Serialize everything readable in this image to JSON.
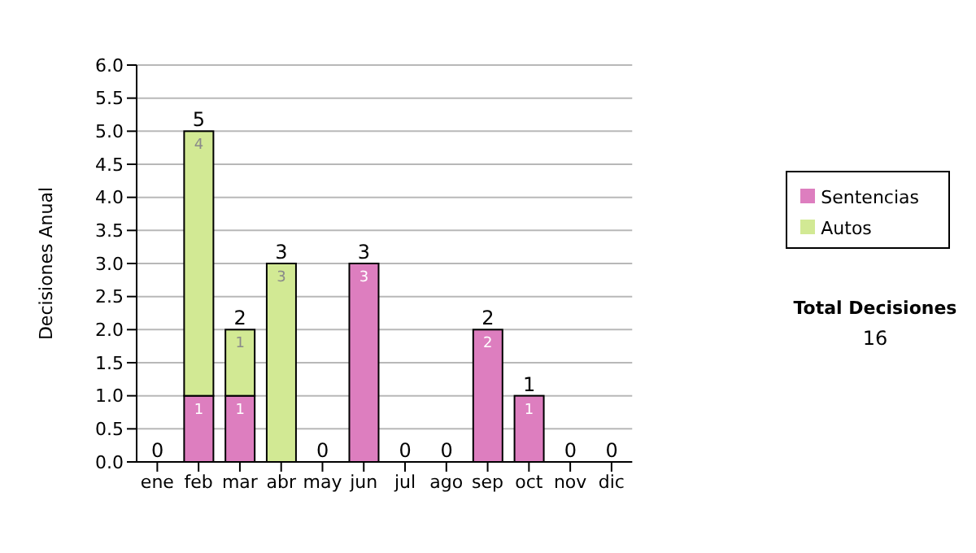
{
  "chart_data": {
    "type": "bar",
    "stacked": true,
    "ylabel": "Decisiones Anual",
    "categories": [
      "ene",
      "feb",
      "mar",
      "abr",
      "may",
      "jun",
      "jul",
      "ago",
      "sep",
      "oct",
      "nov",
      "dic"
    ],
    "series": [
      {
        "name": "Sentencias",
        "color": "#dd7ebf",
        "values": [
          0,
          1,
          1,
          0,
          0,
          3,
          0,
          0,
          2,
          1,
          0,
          0
        ],
        "value_labels": [
          null,
          "1",
          "1",
          null,
          null,
          "3",
          null,
          null,
          "2",
          "1",
          null,
          null
        ]
      },
      {
        "name": "Autos",
        "color": "#d2e994",
        "values": [
          0,
          4,
          1,
          3,
          0,
          0,
          0,
          0,
          0,
          0,
          0,
          0
        ],
        "value_labels": [
          null,
          "4",
          "1",
          "3",
          null,
          null,
          null,
          null,
          null,
          null,
          null,
          null
        ]
      }
    ],
    "totals": [
      "0",
      "5",
      "2",
      "3",
      "0",
      "3",
      "0",
      "0",
      "2",
      "1",
      "0",
      "0"
    ],
    "ylim": [
      0,
      6
    ],
    "yticks": [
      {
        "value": 0,
        "label": "0.0"
      },
      {
        "value": 0.5,
        "label": "0.5"
      },
      {
        "value": 1,
        "label": "1.0"
      },
      {
        "value": 1.5,
        "label": "1.5"
      },
      {
        "value": 2,
        "label": "2.0"
      },
      {
        "value": 2.5,
        "label": "2.5"
      },
      {
        "value": 3,
        "label": "3.0"
      },
      {
        "value": 3.5,
        "label": "3.5"
      },
      {
        "value": 4,
        "label": "4.0"
      },
      {
        "value": 4.5,
        "label": "4.5"
      },
      {
        "value": 5,
        "label": "5.0"
      },
      {
        "value": 5.5,
        "label": "5.5"
      },
      {
        "value": 6,
        "label": "6.0"
      }
    ],
    "grid": "y",
    "legend": "right",
    "annotations": [
      "Total Decisiones",
      "16"
    ]
  }
}
